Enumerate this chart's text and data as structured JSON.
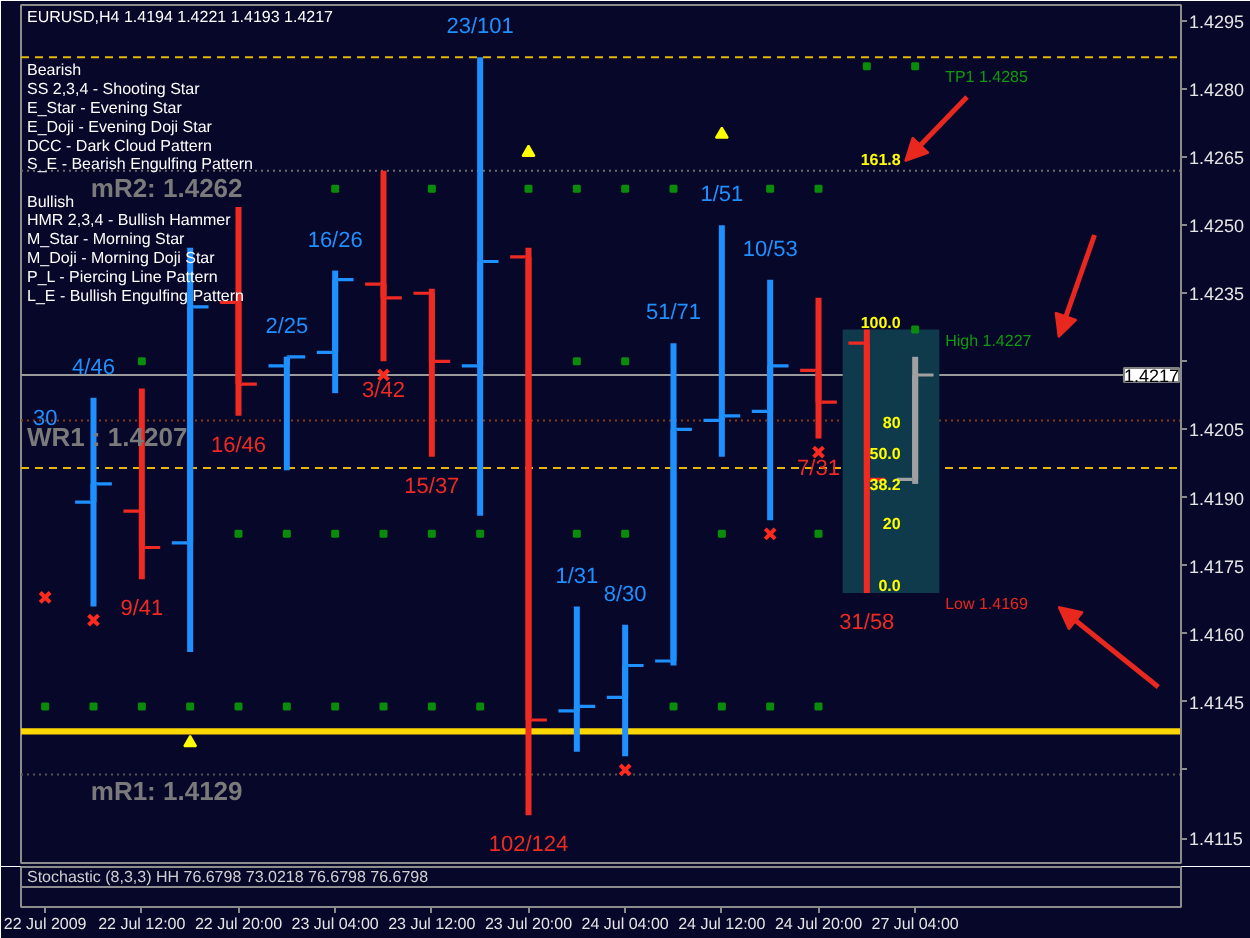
{
  "chart_data": {
    "type": "candlestick",
    "title": "EURUSD,H4 1.4194 1.4221 1.4193 1.4217",
    "categories": [
      "22 Jul 2009",
      null,
      "22 Jul 12:00",
      null,
      "22 Jul 20:00",
      null,
      "23 Jul 04:00",
      null,
      "23 Jul 12:00",
      null,
      "23 Jul 20:00",
      null,
      "24 Jul 04:00",
      null,
      "24 Jul 12:00",
      null,
      "24 Jul 20:00",
      null,
      "27 Jul 04:00",
      null,
      null,
      null,
      null,
      null
    ],
    "ohlc": [
      null,
      [
        1.4189,
        1.4212,
        1.4166,
        1.4193
      ],
      [
        1.4187,
        1.4214,
        1.4172,
        1.4179
      ],
      [
        1.418,
        1.4245,
        1.4156,
        1.4232
      ],
      [
        1.4233,
        1.4254,
        1.4208,
        1.4215
      ],
      [
        1.4219,
        1.4221,
        1.4196,
        1.4221
      ],
      [
        1.4222,
        1.424,
        1.4213,
        1.4238
      ],
      [
        1.4237,
        1.4262,
        1.422,
        1.4234
      ],
      [
        1.4235,
        1.4236,
        1.4199,
        1.422
      ],
      [
        1.4219,
        1.4287,
        1.4186,
        1.4242
      ],
      [
        1.4243,
        1.4245,
        1.412,
        1.4141
      ],
      [
        1.4143,
        1.4166,
        1.4134,
        1.4144
      ],
      [
        1.4146,
        1.4162,
        1.4133,
        1.4153
      ],
      [
        1.4154,
        1.4224,
        1.4153,
        1.4205
      ],
      [
        1.4207,
        1.425,
        1.4199,
        1.4208
      ],
      [
        1.4209,
        1.4238,
        1.4185,
        1.4219
      ],
      [
        1.4218,
        1.4234,
        1.4203,
        1.4211
      ],
      [
        1.4224,
        1.4227,
        1.4169,
        1.4194
      ],
      [
        1.4194,
        1.4221,
        1.4193,
        1.4217
      ],
      null,
      null,
      null,
      null,
      null
    ],
    "colors": [
      null,
      "#1e90ff",
      "#ee2a22",
      "#1e90ff",
      "#ee2a22",
      "#1e90ff",
      "#1e90ff",
      "#ee2a22",
      "#ee2a22",
      "#1e90ff",
      "#ee2a22",
      "#1e90ff",
      "#1e90ff",
      "#1e90ff",
      "#1e90ff",
      "#1e90ff",
      "#ee2a22",
      "#ee2a22",
      "#a0a0a0",
      null,
      null,
      null,
      null,
      null
    ],
    "value_labels": [
      null,
      "4/46",
      "9/41",
      null,
      "16/46",
      "2/25",
      "16/26",
      "3/42",
      "15/37",
      "23/101",
      "102/124",
      "1/31",
      "8/30",
      "51/71",
      "1/51",
      "10/53",
      "7/31",
      "31/58",
      null,
      null,
      null,
      null,
      null,
      null
    ],
    "series": [
      {
        "type": "bar",
        "color": "#0f3a4c",
        "base": [
          null,
          null,
          null,
          null,
          null,
          null,
          null,
          null,
          null,
          null,
          null,
          null,
          null,
          null,
          null,
          null,
          null,
          1.4169,
          1.4169,
          null,
          null,
          null,
          null,
          null
        ],
        "values": [
          null,
          null,
          null,
          null,
          null,
          null,
          null,
          null,
          null,
          null,
          null,
          null,
          null,
          null,
          null,
          null,
          null,
          0.0058,
          0.0058,
          null,
          null,
          null,
          null,
          null
        ]
      },
      {
        "type": "scatter",
        "marker": "cross",
        "color": "#ff2a1e",
        "values": [
          1.4168,
          1.4163,
          null,
          null,
          null,
          null,
          null,
          1.4217,
          null,
          null,
          null,
          null,
          1.413,
          null,
          null,
          1.4182,
          1.42,
          null,
          null,
          null,
          null,
          null,
          null,
          null
        ]
      },
      {
        "type": "scatter",
        "marker": "triangle",
        "color": "#ffff00",
        "values": [
          null,
          null,
          null,
          1.4136,
          null,
          null,
          null,
          null,
          null,
          null,
          1.4266,
          null,
          null,
          null,
          1.427,
          null,
          null,
          null,
          null,
          null,
          null,
          null,
          null,
          null
        ]
      },
      {
        "type": "scatter",
        "marker": "square",
        "color": "#0a8c0a",
        "values": [
          null,
          null,
          null,
          null,
          null,
          null,
          1.4258,
          null,
          1.4258,
          null,
          1.4258,
          1.4258,
          1.4258,
          1.4258,
          null,
          1.4258,
          1.4258,
          1.4285,
          1.4285,
          null,
          null,
          null,
          null,
          null
        ]
      },
      {
        "type": "scatter",
        "marker": "square",
        "color": "#0a8c0a",
        "values": [
          null,
          null,
          1.422,
          null,
          null,
          null,
          null,
          null,
          null,
          null,
          null,
          1.422,
          1.422,
          null,
          null,
          null,
          null,
          null,
          1.4227,
          null,
          null,
          null,
          null,
          null
        ]
      },
      {
        "type": "scatter",
        "marker": "square",
        "color": "#0a8c0a",
        "values": [
          null,
          null,
          null,
          null,
          1.4182,
          1.4182,
          1.4182,
          1.4182,
          1.4182,
          1.4182,
          null,
          1.4182,
          1.4182,
          null,
          1.4182,
          null,
          1.4182,
          null,
          null,
          null,
          null,
          null,
          null,
          null
        ]
      },
      {
        "type": "scatter",
        "marker": "square",
        "color": "#0a8c0a",
        "values": [
          1.4144,
          1.4144,
          1.4144,
          1.4144,
          1.4144,
          1.4144,
          1.4144,
          1.4144,
          1.4144,
          1.4144,
          null,
          null,
          null,
          1.4144,
          1.4144,
          1.4144,
          1.4144,
          null,
          null,
          null,
          null,
          null,
          null,
          null
        ]
      }
    ],
    "ylim": [
      1.41095,
      1.42985
    ],
    "yticks": [
      1.4295,
      {
        "value": 1.428,
        "label": "1.4280"
      },
      1.4265,
      {
        "value": 1.425,
        "label": "1.4250"
      },
      1.4235,
      {
        "value": 1.422,
        "label": null
      },
      1.4205,
      {
        "value": 1.419,
        "label": "1.4190"
      },
      1.4175,
      {
        "value": 1.416,
        "label": "1.4160"
      },
      1.4145,
      {
        "value": 1.413,
        "label": null
      },
      1.4115
    ],
    "ref_lines": [
      {
        "axis": "y",
        "value": 1.4287,
        "color": "#e6b800",
        "line_style": "dashed"
      },
      {
        "axis": "y",
        "value": 1.4262,
        "color": "#6e6e6e",
        "line_style": "dotted"
      },
      {
        "axis": "y",
        "value": 1.4217,
        "label": "1.4217",
        "color": "#9a9a9a",
        "line_style": "solid"
      },
      {
        "axis": "y",
        "value": 1.4207,
        "color": "#8a3a10",
        "line_style": "dotted"
      },
      {
        "axis": "y",
        "value": 1.41965,
        "color": "#e6b800",
        "line_style": "dashed"
      },
      {
        "axis": "y",
        "value": 1.4129,
        "color": "#555555",
        "line_style": "dotted"
      }
    ],
    "bands": [
      {
        "axis": "y",
        "from": 1.41378,
        "to": 1.41392,
        "color": "#ffd700"
      }
    ],
    "annotations": [
      "Bearish",
      "SS 2,3,4 - Shooting Star",
      "E_Star - Evening Star",
      "E_Doji - Evening Doji Star",
      "DCC - Dark Cloud Pattern",
      "S_E - Bearish Engulfing Pattern",
      "Bullish",
      "HMR 2,3,4 - Bullish Hammer",
      "M_Star - Morning Star",
      "M_Doji - Morning Doji Star",
      "P_L - Piercing Line Pattern",
      "L_E - Bullish Engulfing Pattern",
      "30",
      {
        "text": "mR2: 1.4262",
        "y": 1.4262
      },
      {
        "text": "WR1 : 1.4207",
        "y": 1.4207
      },
      {
        "text": "mR1: 1.4129",
        "y": 1.4129
      },
      {
        "text": "TP1 1.4285",
        "y": 1.4285
      },
      "High 1.4227",
      "Low 1.4169",
      "161.8",
      "100.0",
      "80",
      "50.0",
      "38.2",
      "20",
      "0.0",
      "Stochastic (8,3,3) HH 76.6798 73.0218 76.6798 76.6798"
    ],
    "grid": false
  }
}
